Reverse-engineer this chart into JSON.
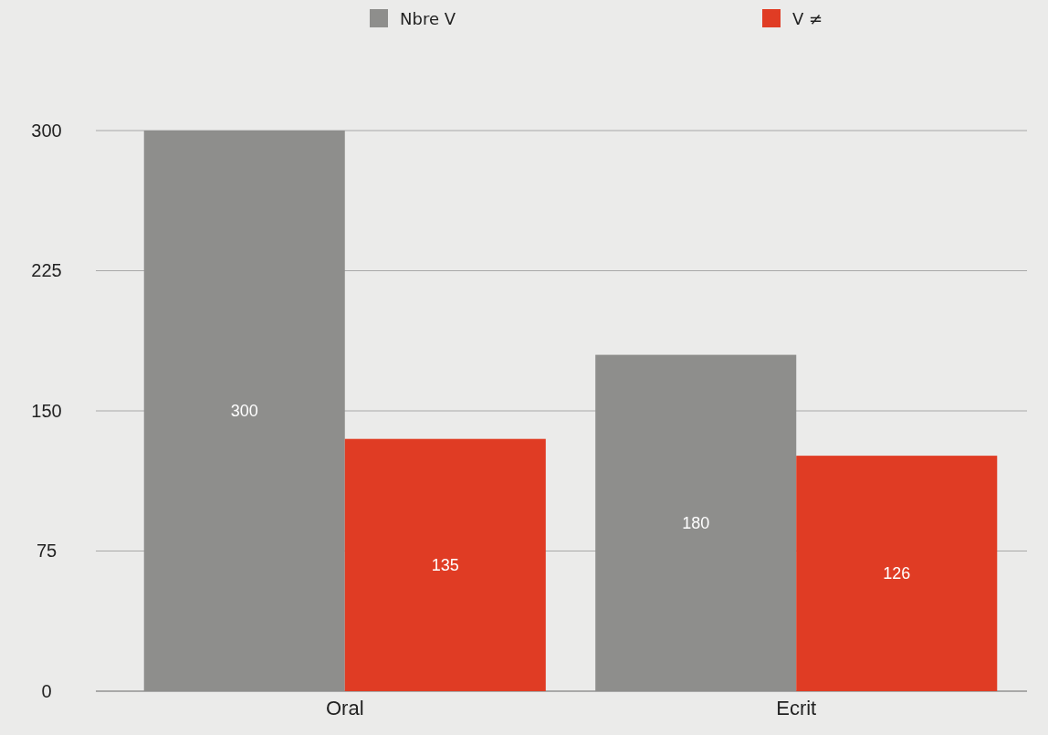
{
  "chart_data": {
    "type": "bar",
    "categories": [
      "Oral",
      "Ecrit"
    ],
    "series": [
      {
        "name": "Nbre V",
        "color": "#8e8e8c",
        "values": [
          300,
          180
        ]
      },
      {
        "name": "V ≠",
        "color": "#e03c24",
        "values": [
          135,
          126
        ]
      }
    ],
    "ylim": [
      0,
      300
    ],
    "yticks": [
      0,
      75,
      150,
      225,
      300
    ],
    "grid": "y",
    "legend": "top",
    "data_labels": true
  }
}
